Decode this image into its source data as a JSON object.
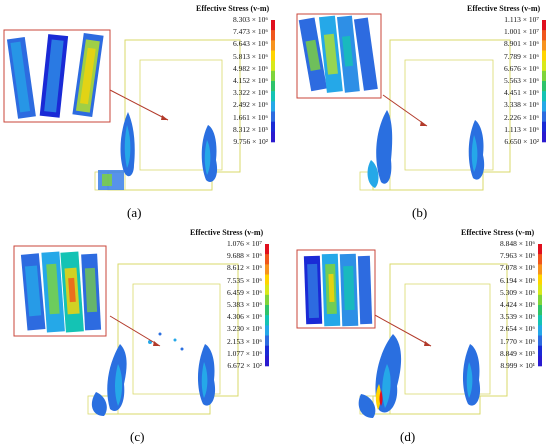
{
  "legend_title": "Effective Stress (v-m)",
  "colorbar": [
    "#e0101e",
    "#f0561c",
    "#f7931e",
    "#ffd400",
    "#d8e81a",
    "#7fd43a",
    "#2ec36a",
    "#14c3b4",
    "#25a8e8",
    "#2d6be0",
    "#1a2ad6",
    "#2a1ad0"
  ],
  "panels": [
    {
      "label": "(a)",
      "ticks": [
        "8.303 × 10⁶",
        "7.473 × 10⁶",
        "6.643 × 10⁶",
        "5.813 × 10⁶",
        "4.982 × 10⁶",
        "4.152 × 10⁶",
        "3.322 × 10⁶",
        "2.492 × 10⁶",
        "1.661 × 10⁶",
        "8.312 × 10⁵",
        "9.756 × 10²"
      ]
    },
    {
      "label": "(b)",
      "ticks": [
        "1.113 × 10⁷",
        "1.001 × 10⁷",
        "8.901 × 10⁶",
        "7.789 × 10⁶",
        "6.676 × 10⁶",
        "5.563 × 10⁶",
        "4.451 × 10⁶",
        "3.338 × 10⁶",
        "2.226 × 10⁶",
        "1.113 × 10⁶",
        "6.650 × 10²"
      ]
    },
    {
      "label": "(c)",
      "ticks": [
        "1.076 × 10⁷",
        "9.688 × 10⁶",
        "8.612 × 10⁶",
        "7.535 × 10⁶",
        "6.459 × 10⁶",
        "5.383 × 10⁶",
        "4.306 × 10⁶",
        "3.230 × 10⁶",
        "2.153 × 10⁶",
        "1.077 × 10⁶",
        "6.672 × 10²"
      ]
    },
    {
      "label": "(d)",
      "ticks": [
        "8.848 × 10⁶",
        "7.963 × 10⁶",
        "7.078 × 10⁶",
        "6.194 × 10⁶",
        "5.309 × 10⁶",
        "4.424 × 10⁶",
        "3.539 × 10⁶",
        "2.654 × 10⁶",
        "1.770 × 10⁶",
        "8.849 × 10⁵",
        "8.999 × 10¹"
      ]
    }
  ]
}
